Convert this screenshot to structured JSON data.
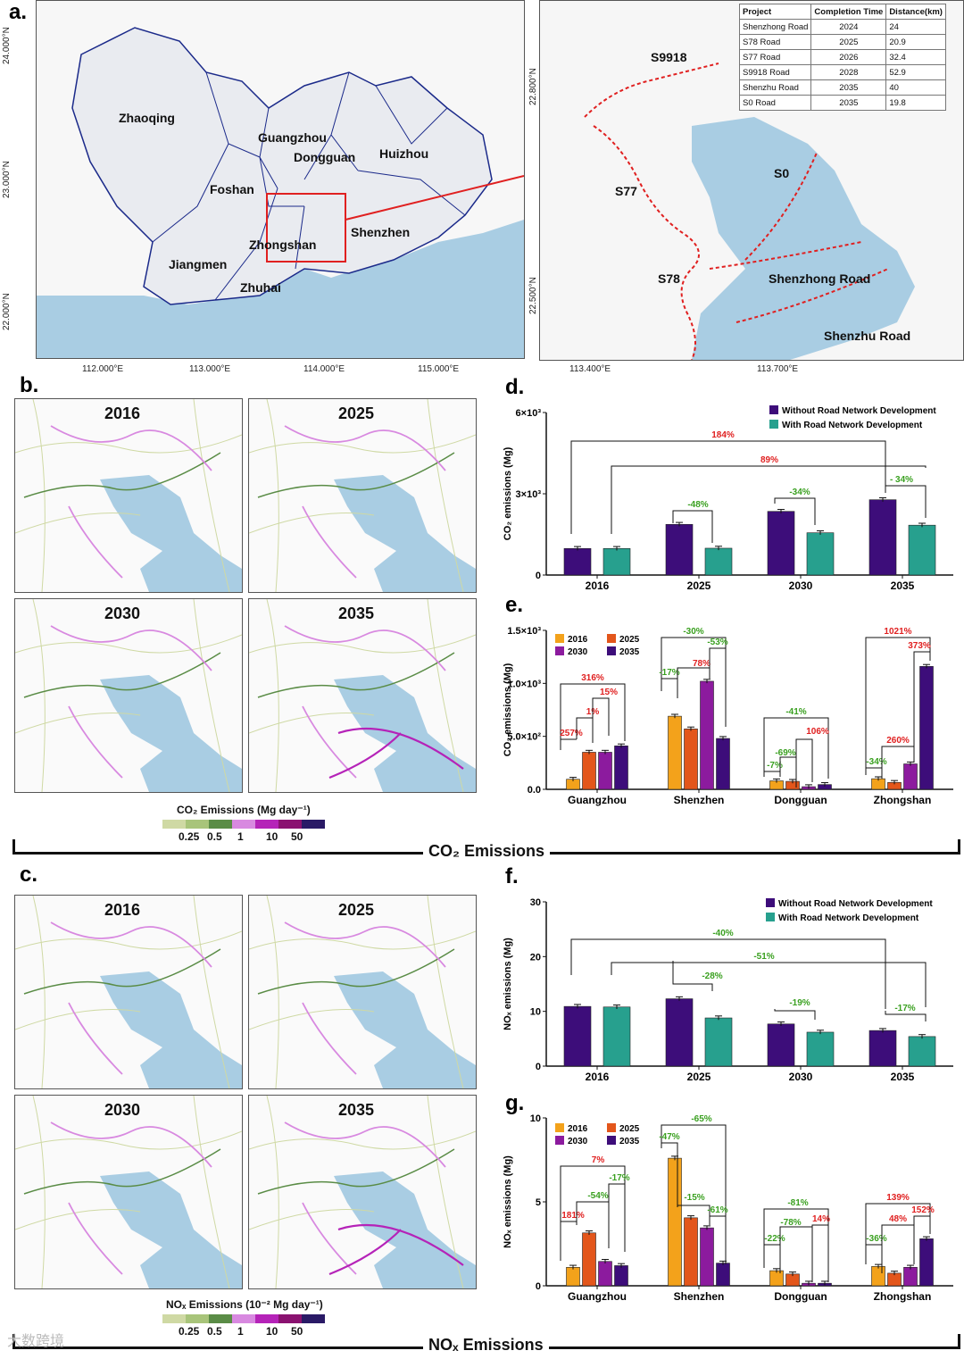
{
  "panels": {
    "a": "a.",
    "b": "b.",
    "c": "c.",
    "d": "d.",
    "e": "e.",
    "f": "f.",
    "g": "g."
  },
  "map_a": {
    "cities": [
      "Zhaoqing",
      "Guangzhou",
      "Huizhou",
      "Dongguan",
      "Foshan",
      "Zhongshan",
      "Shenzhen",
      "Jiangmen",
      "Zhuhai"
    ],
    "lat_labels": [
      "24.000°N",
      "23.000°N",
      "22.000°N"
    ],
    "lon_labels": [
      "112.000°E",
      "113.000°E",
      "114.000°E",
      "115.000°E"
    ]
  },
  "map_zoom": {
    "roads": [
      "S9918",
      "S77",
      "S0",
      "S78",
      "Shenzhong Road",
      "Shenzhu Road"
    ],
    "lat_labels": [
      "22.800°N",
      "22.500°N"
    ],
    "lon_labels": [
      "113.400°E",
      "113.700°E"
    ]
  },
  "project_table": {
    "headers": [
      "Project",
      "Completion Time",
      "Distance(km)"
    ],
    "rows": [
      [
        "Shenzhong Road",
        "2024",
        "24"
      ],
      [
        "S78 Road",
        "2025",
        "20.9"
      ],
      [
        "S77 Road",
        "2026",
        "32.4"
      ],
      [
        "S9918 Road",
        "2028",
        "52.9"
      ],
      [
        "Shenzhu Road",
        "2035",
        "40"
      ],
      [
        "S0 Road",
        "2035",
        "19.8"
      ]
    ]
  },
  "emission_maps": {
    "years": [
      "2016",
      "2025",
      "2030",
      "2035"
    ],
    "co2_legend_title": "CO₂ Emissions (Mg day⁻¹)",
    "nox_legend_title": "NOₓ Emissions (10⁻² Mg day⁻¹)",
    "legend_ticks": [
      "0.25",
      "0.5",
      "1",
      "10",
      "50"
    ],
    "legend_colors": [
      "#cfd9a4",
      "#a8c47a",
      "#5a8c46",
      "#d889e0",
      "#b523b8",
      "#8a1270",
      "#2a1a66"
    ]
  },
  "sections": {
    "co2": "CO₂ Emissions",
    "nox": "NOₓ Emissions"
  },
  "watermark": "大数跨境",
  "colors": {
    "without": "#3d0d7a",
    "with": "#27a08e",
    "y2016": "#f3a21b",
    "y2025": "#e3561b",
    "y2030": "#8c1b9e",
    "y2035": "#3d0d7a",
    "increase": "#e02020",
    "decrease": "#3aa020"
  },
  "chart_data": [
    {
      "panel": "d",
      "type": "bar",
      "ylabel": "CO₂ emissions (Mg)",
      "ytick_labels": [
        "0",
        "3×10³",
        "6×10³"
      ],
      "ylim": [
        0,
        6000
      ],
      "categories": [
        "2016",
        "2025",
        "2030",
        "2035"
      ],
      "series": [
        {
          "name": "Without Road Network Development",
          "values": [
            980,
            1870,
            2350,
            2780
          ]
        },
        {
          "name": "With Road Network Development",
          "values": [
            980,
            990,
            1560,
            1840
          ]
        }
      ],
      "annotations": [
        "184%",
        "89%",
        "-48%",
        "-34%",
        "- 34%"
      ]
    },
    {
      "panel": "e",
      "type": "bar",
      "ylabel": "CO₂ emissions (Mg)",
      "ytick_labels": [
        "0.0",
        "5.0×10²",
        "1.0×10³",
        "1.5×10³"
      ],
      "ylim": [
        0,
        1500
      ],
      "categories": [
        "Guangzhou",
        "Shenzhen",
        "Dongguan",
        "Zhongshan"
      ],
      "series": [
        {
          "name": "2016",
          "values": [
            95,
            690,
            80,
            100
          ]
        },
        {
          "name": "2025",
          "values": [
            350,
            570,
            75,
            65
          ]
        },
        {
          "name": "2030",
          "values": [
            350,
            1020,
            25,
            240
          ]
        },
        {
          "name": "2035",
          "values": [
            410,
            480,
            45,
            1160
          ]
        }
      ],
      "annotations": [
        "316%",
        "257%",
        "1%",
        "15%",
        "-30%",
        "-17%",
        "78%",
        "-53%",
        "-41%",
        "-7%",
        "-69%",
        "106%",
        "1021%",
        "-34%",
        "260%",
        "373%"
      ]
    },
    {
      "panel": "f",
      "type": "bar",
      "ylabel": "NOₓ emissions (Mg)",
      "ytick_labels": [
        "0",
        "10",
        "20",
        "30"
      ],
      "ylim": [
        0,
        30
      ],
      "categories": [
        "2016",
        "2025",
        "2030",
        "2035"
      ],
      "series": [
        {
          "name": "Without Road Network Development",
          "values": [
            10.9,
            12.3,
            7.7,
            6.5
          ]
        },
        {
          "name": "With Road Network Development",
          "values": [
            10.8,
            8.8,
            6.2,
            5.4
          ]
        }
      ],
      "annotations": [
        "-40%",
        "-51%",
        "-28%",
        "-19%",
        "-17%"
      ]
    },
    {
      "panel": "g",
      "type": "bar",
      "ylabel": "NOₓ emissions (Mg)",
      "ytick_labels": [
        "0",
        "5",
        "10"
      ],
      "ylim": [
        0,
        10
      ],
      "categories": [
        "Guangzhou",
        "Shenzhen",
        "Dongguan",
        "Zhongshan"
      ],
      "series": [
        {
          "name": "2016",
          "values": [
            1.1,
            7.6,
            0.9,
            1.15
          ]
        },
        {
          "name": "2025",
          "values": [
            3.15,
            4.05,
            0.7,
            0.75
          ]
        },
        {
          "name": "2030",
          "values": [
            1.45,
            3.45,
            0.15,
            1.1
          ]
        },
        {
          "name": "2035",
          "values": [
            1.2,
            1.35,
            0.15,
            2.8
          ]
        }
      ],
      "annotations": [
        "7%",
        "181%",
        "-54%",
        "-17%",
        "-65%",
        "-47%",
        "-15%",
        "-61%",
        "-81%",
        "-22%",
        "-78%",
        "14%",
        "139%",
        "-36%",
        "48%",
        "152%"
      ]
    }
  ]
}
